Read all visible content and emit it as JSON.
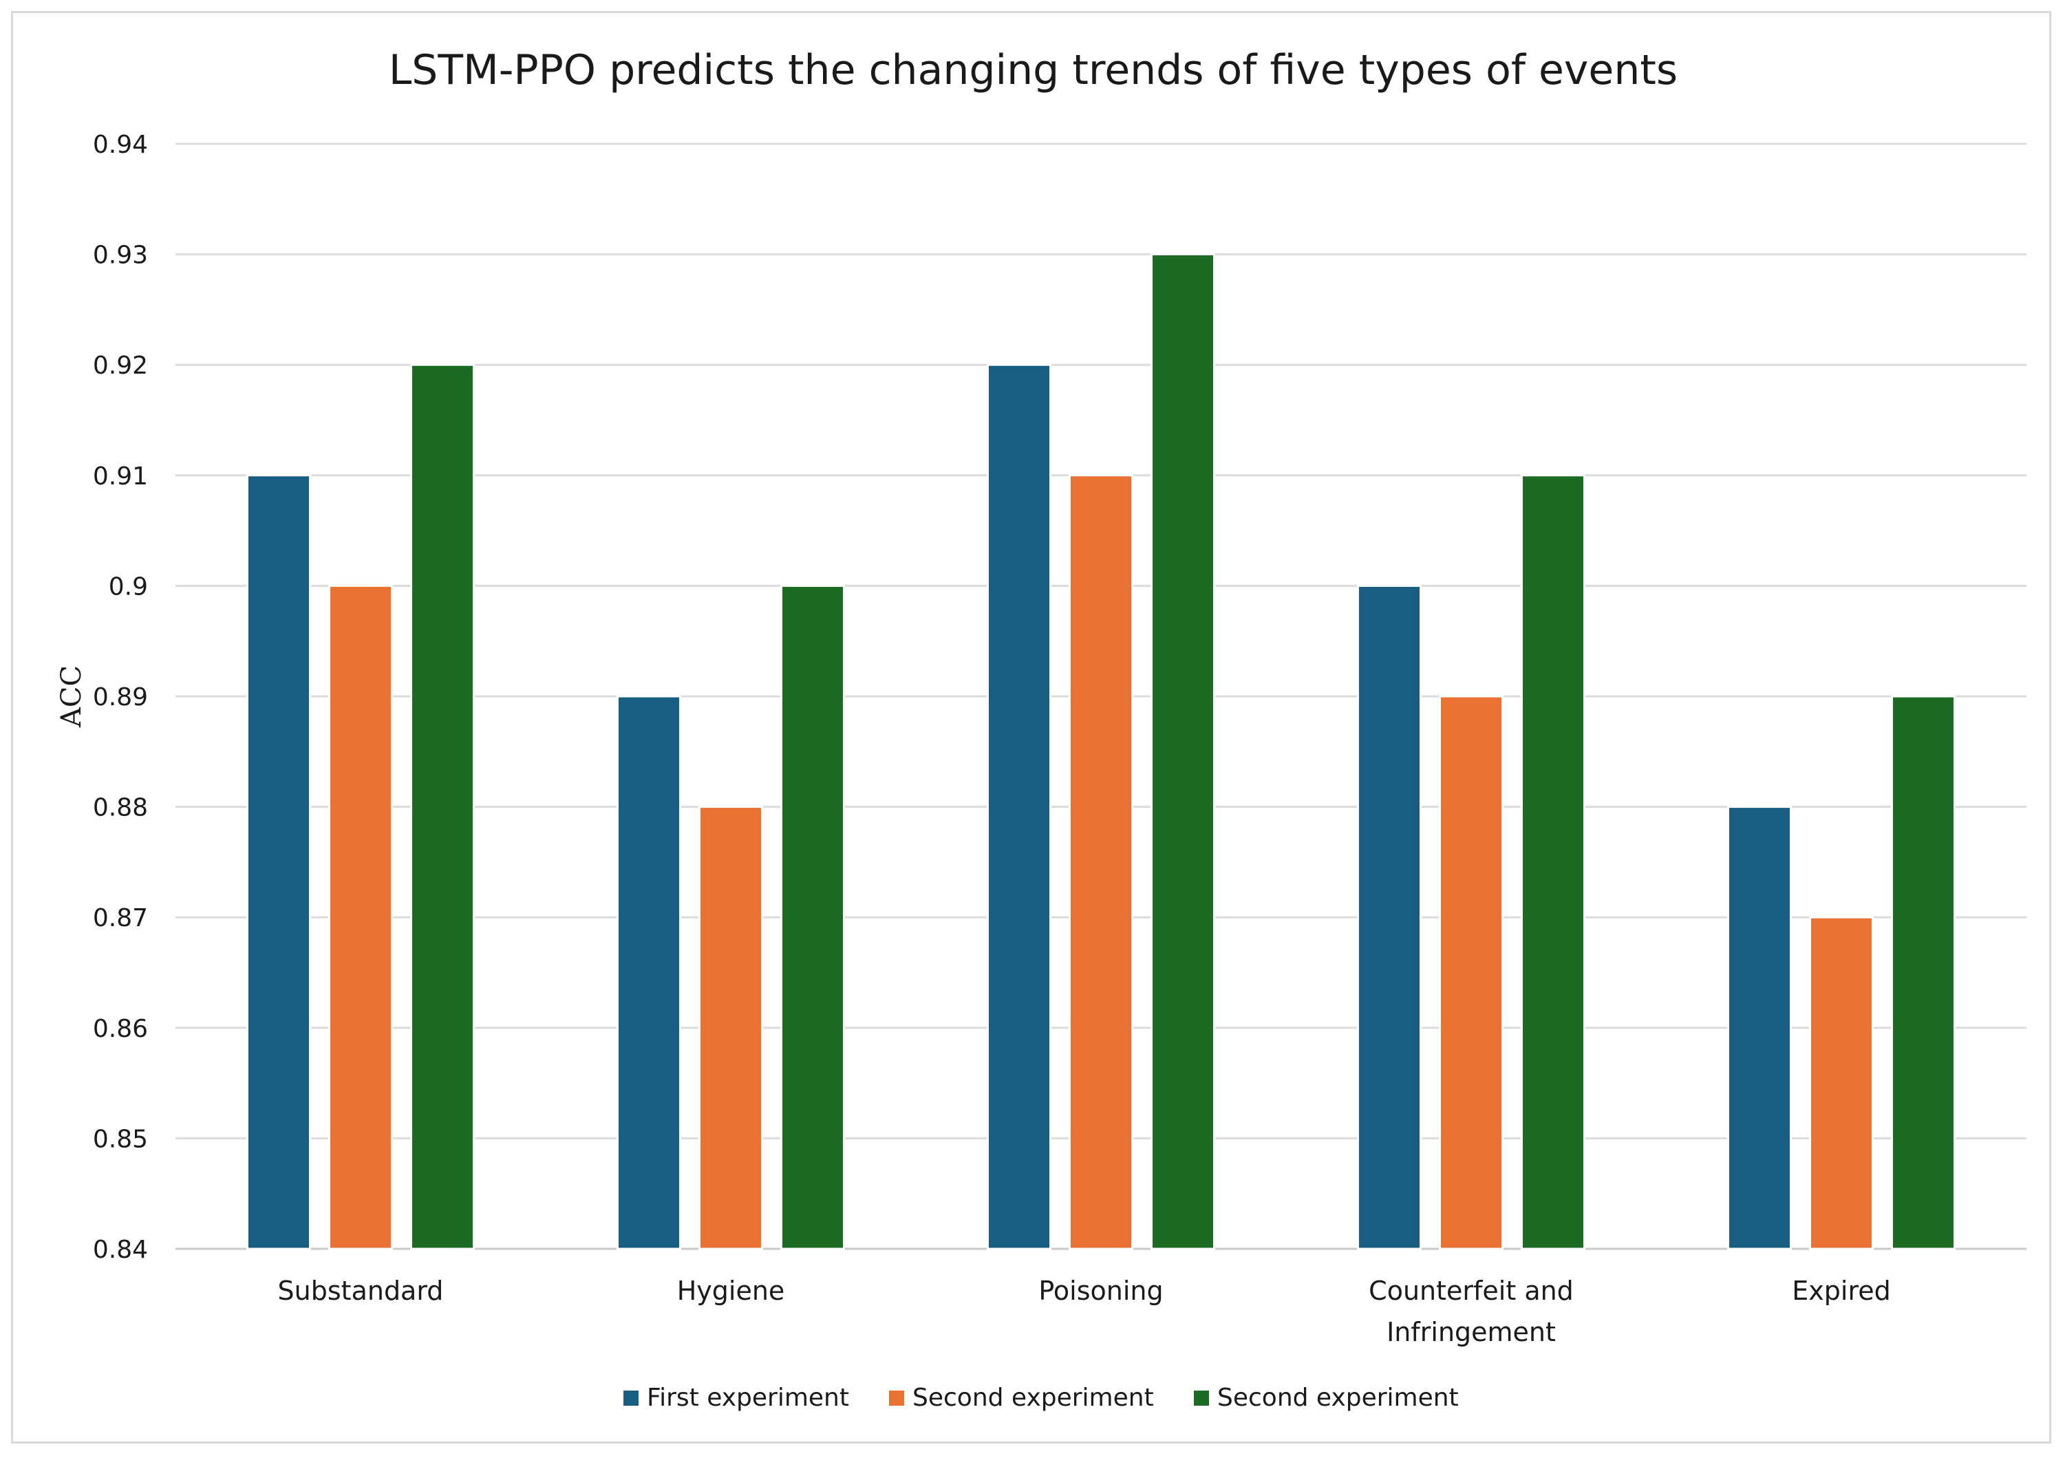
{
  "chart_data": {
    "type": "bar",
    "title": "LSTM-PPO predicts the changing trends of five types of events",
    "xlabel": "",
    "ylabel": "ACC",
    "ylim": [
      0.84,
      0.94
    ],
    "yticks": [
      "0.84",
      "0.85",
      "0.86",
      "0.87",
      "0.88",
      "0.89",
      "0.9",
      "0.91",
      "0.92",
      "0.93",
      "0.94"
    ],
    "grid": true,
    "legend_position": "bottom-center",
    "categories": [
      [
        "Substandard"
      ],
      [
        "Hygiene"
      ],
      [
        "Poisoning"
      ],
      [
        "Counterfeit and",
        "Infringement"
      ],
      [
        "Expired"
      ]
    ],
    "series": [
      {
        "name": "First experiment",
        "color": "#175e82",
        "values": [
          0.91,
          0.89,
          0.92,
          0.9,
          0.88
        ]
      },
      {
        "name": "Second experiment",
        "color": "#e97132",
        "values": [
          0.9,
          0.88,
          0.91,
          0.89,
          0.87
        ]
      },
      {
        "name": "Second experiment",
        "color": "#1c6b24",
        "values": [
          0.92,
          0.9,
          0.93,
          0.91,
          0.89
        ]
      }
    ]
  }
}
